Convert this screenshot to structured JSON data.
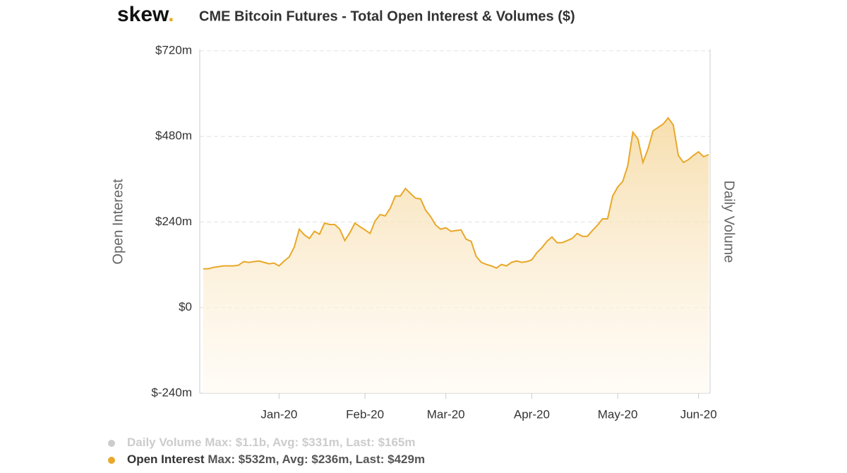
{
  "chart_data": {
    "type": "area",
    "brand": "skew",
    "brand_dot": ".",
    "title": "CME Bitcoin Futures - Total Open Interest & Volumes ($)",
    "y_label": "Open Interest",
    "y2_label": "Daily Volume",
    "categories": [
      null,
      null,
      null,
      null,
      null,
      null,
      null,
      null,
      null,
      null,
      null,
      null,
      null,
      null,
      null,
      "Jan-20",
      null,
      null,
      null,
      null,
      null,
      null,
      null,
      null,
      null,
      null,
      null,
      null,
      null,
      null,
      null,
      null,
      "Feb-20",
      null,
      null,
      null,
      null,
      null,
      null,
      null,
      null,
      null,
      null,
      null,
      null,
      null,
      null,
      null,
      "Mar-20",
      null,
      null,
      null,
      null,
      null,
      null,
      null,
      null,
      null,
      null,
      null,
      null,
      null,
      null,
      null,
      null,
      "Apr-20",
      null,
      null,
      null,
      null,
      null,
      null,
      null,
      null,
      null,
      null,
      null,
      null,
      null,
      null,
      null,
      null,
      "May-20",
      null,
      null,
      null,
      null,
      null,
      null,
      null,
      null,
      null,
      null,
      null,
      null,
      null,
      null,
      null,
      "Jun-20",
      null,
      null
    ],
    "series": [
      {
        "name": "Open Interest",
        "color": "#e8a82a",
        "stats": "Max: $532m, Avg: $236m, Last: $429m",
        "values": [
          109,
          109,
          113,
          115,
          117,
          117,
          117,
          119,
          129,
          127,
          129,
          131,
          127,
          123,
          125,
          117,
          131,
          142,
          170,
          220,
          204,
          194,
          214,
          206,
          237,
          233,
          233,
          220,
          188,
          210,
          237,
          227,
          218,
          208,
          243,
          261,
          257,
          279,
          313,
          313,
          334,
          320,
          307,
          305,
          273,
          255,
          231,
          220,
          224,
          214,
          216,
          218,
          192,
          186,
          144,
          127,
          121,
          117,
          111,
          121,
          117,
          127,
          131,
          127,
          129,
          134,
          154,
          168,
          186,
          198,
          182,
          182,
          188,
          194,
          208,
          200,
          200,
          216,
          231,
          249,
          249,
          313,
          338,
          354,
          398,
          492,
          473,
          407,
          445,
          496,
          505,
          515,
          532,
          512,
          427,
          407,
          415,
          427,
          437,
          423,
          429
        ]
      }
    ],
    "hidden_series": [
      {
        "name": "Daily Volume",
        "color": "#cccccc",
        "stats": "Max: $1.1b, Avg: $331m, Last: $165m"
      }
    ],
    "ylim": [
      -240,
      720
    ],
    "yticks": [
      {
        "value": -240,
        "label": "$-240m"
      },
      {
        "value": 0,
        "label": "$0"
      },
      {
        "value": 240,
        "label": "$240m"
      },
      {
        "value": 480,
        "label": "$480m"
      },
      {
        "value": 720,
        "label": "$720m"
      }
    ],
    "grid": true
  }
}
